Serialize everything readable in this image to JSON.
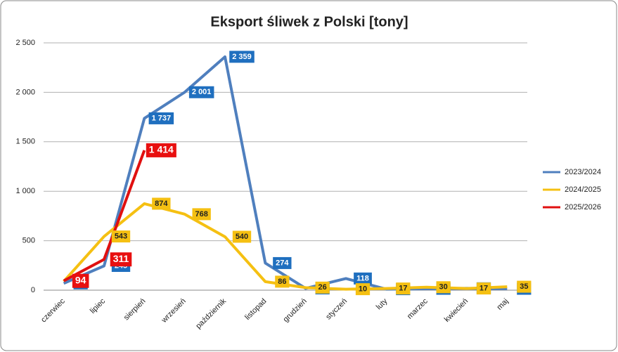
{
  "chart_data": {
    "type": "line",
    "title": "Eksport śliwek z Polski [tony]",
    "categories": [
      "czerwiec",
      "lipiec",
      "sierpień",
      "wrzesień",
      "październik",
      "listopad",
      "grudzień",
      "styczeń",
      "luty",
      "marzec",
      "kwiecień",
      "maj"
    ],
    "series": [
      {
        "name": "2023/2024",
        "color": "#4f7fbe",
        "label_color": "#1f6fbf",
        "values": [
          69,
          245,
          1737,
          2001,
          2359,
          274,
          18,
          118,
          10,
          14,
          19,
          14
        ],
        "value_labels": [
          "69",
          "245",
          "1 737",
          "2 001",
          "2 359",
          "274",
          "18",
          "118",
          "10",
          "14",
          "19",
          "14"
        ]
      },
      {
        "name": "2024/2025",
        "color": "#f5c012",
        "label_color": "#f5c012",
        "values": [
          89,
          543,
          874,
          768,
          540,
          86,
          26,
          10,
          17,
          30,
          17,
          35
        ]
      },
      {
        "name": "2025/2026",
        "color": "#e01010",
        "label_color": "#e81010",
        "values": [
          94,
          311,
          1414,
          null,
          null,
          null,
          null,
          null,
          null,
          null,
          null,
          null
        ],
        "value_labels": [
          "94",
          "311",
          "1 414",
          null,
          null,
          null,
          null,
          null,
          null,
          null,
          null,
          null
        ]
      }
    ],
    "ylim": [
      0,
      2500
    ],
    "yticks": [
      0,
      500,
      {
        "value": 1000,
        "label": "1 000"
      },
      {
        "value": 1500,
        "label": "1 500"
      },
      {
        "value": 2000,
        "label": "2 000"
      },
      {
        "value": 2500,
        "label": "2 500"
      }
    ],
    "grid": true,
    "legend": "right"
  }
}
